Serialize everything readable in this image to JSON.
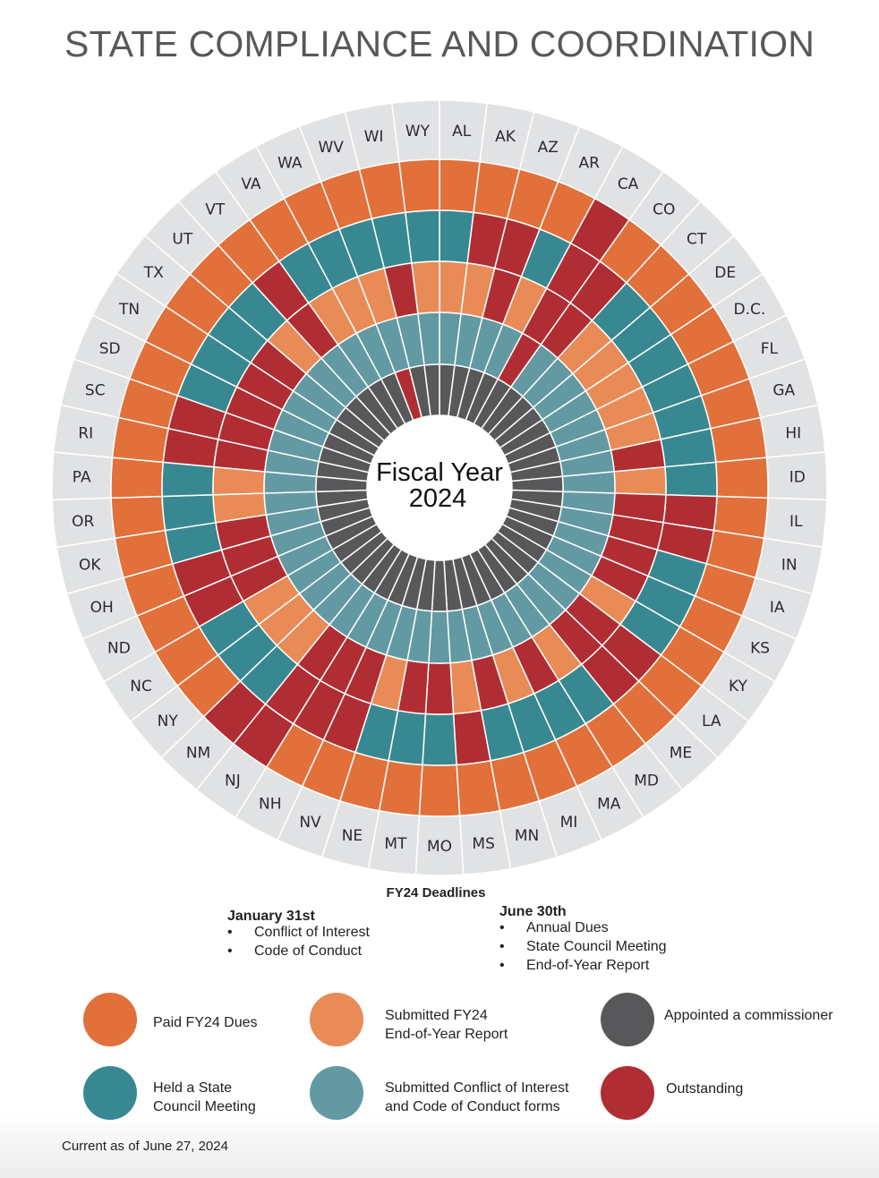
{
  "title": "STATE COMPLIANCE AND COORDINATION",
  "center_label": {
    "line1": "Fiscal Year",
    "line2": "2024"
  },
  "deadlines": {
    "heading": "FY24 Deadlines",
    "groups": [
      {
        "date": "January 31st",
        "items": [
          "Conflict of Interest",
          "Code of Conduct"
        ]
      },
      {
        "date": "June 30th",
        "items": [
          "Annual Dues",
          "State Council Meeting",
          "End-of-Year Report"
        ]
      }
    ],
    "bullet": "•"
  },
  "legend": [
    {
      "key": "dues",
      "label": "Paid FY24 Dues",
      "color": "#E2703A"
    },
    {
      "key": "report",
      "label": "Submitted FY24\nEnd-of-Year Report",
      "color": "#E98B56"
    },
    {
      "key": "commissioner",
      "label": "Appointed a commissioner",
      "color": "#58585A"
    },
    {
      "key": "council",
      "label": "Held a State\nCouncil Meeting",
      "color": "#388891"
    },
    {
      "key": "conflict",
      "label": "Submitted Conflict of Interest\nand Code of Conduct forms",
      "color": "#6399A2"
    },
    {
      "key": "outstanding",
      "label": "Outstanding",
      "color": "#B02E33"
    }
  ],
  "as_of": "Current as of June 27, 2024",
  "chart_data": {
    "type": "heatmap",
    "layout": "radial",
    "states": [
      "AL",
      "AK",
      "AZ",
      "AR",
      "CA",
      "CO",
      "CT",
      "DE",
      "D.C.",
      "FL",
      "GA",
      "HI",
      "ID",
      "IL",
      "IN",
      "IA",
      "KS",
      "KY",
      "LA",
      "ME",
      "MD",
      "MA",
      "MI",
      "MN",
      "MS",
      "MO",
      "MT",
      "NE",
      "NV",
      "NH",
      "NJ",
      "NM",
      "NY",
      "NC",
      "ND",
      "OH",
      "OK",
      "OR",
      "PA",
      "RI",
      "SC",
      "SD",
      "TN",
      "TX",
      "UT",
      "VT",
      "VA",
      "WA",
      "WV",
      "WI",
      "WY"
    ],
    "rings_outer_to_inner": [
      {
        "key": "dues",
        "complete_color": "#E2703A",
        "outstanding": [
          "CA",
          "NM",
          "NJ"
        ]
      },
      {
        "key": "council",
        "complete_color": "#388891",
        "outstanding": [
          "AK",
          "AZ",
          "CA",
          "CO",
          "IL",
          "IN",
          "LA",
          "ME",
          "MS",
          "NV",
          "NH",
          "NJ",
          "ND",
          "OH",
          "RI",
          "SC",
          "VT"
        ]
      },
      {
        "key": "report",
        "complete_color": "#E98B56",
        "outstanding": [
          "AZ",
          "CA",
          "CO",
          "HI",
          "IL",
          "IN",
          "IA",
          "KS",
          "LA",
          "ME",
          "MA",
          "MN",
          "MO",
          "MT",
          "NV",
          "NH",
          "NJ",
          "ND",
          "OH",
          "OK",
          "RI",
          "SC",
          "SD",
          "TN",
          "TX",
          "VT",
          "WI"
        ]
      },
      {
        "key": "conflict",
        "complete_color": "#6399A2",
        "outstanding": [
          "CA"
        ]
      },
      {
        "key": "commissioner",
        "complete_color": "#58585A",
        "outstanding": [
          "WV"
        ]
      }
    ],
    "outstanding_color": "#B02E33",
    "label_ring_color": "#E1E2E4"
  }
}
